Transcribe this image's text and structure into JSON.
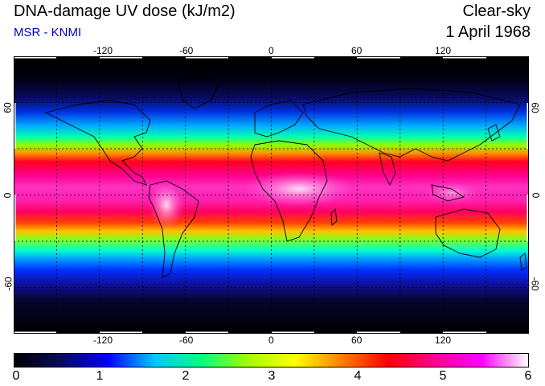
{
  "header": {
    "title": "DNA-damage UV dose (kJ/m2)",
    "subtitle": "MSR - KNMI",
    "condition": "Clear-sky",
    "date": "1 April 1968"
  },
  "map": {
    "lon_ticks": [
      "-120",
      "-60",
      "0",
      "60",
      "120"
    ],
    "lat_ticks": [
      "60",
      "0",
      "-60"
    ]
  },
  "colorbar": {
    "labels": [
      "0",
      "1",
      "2",
      "3",
      "4",
      "5",
      "6"
    ],
    "range": [
      0,
      6
    ],
    "colors": [
      "#000000",
      "#0a0a60",
      "#0000ff",
      "#00c8ff",
      "#00ff80",
      "#a0ff00",
      "#ffff00",
      "#ff8000",
      "#ff0000",
      "#ff0090",
      "#ff00ff",
      "#ffffff"
    ]
  },
  "colors": {
    "subtitle": "#0000cc"
  }
}
